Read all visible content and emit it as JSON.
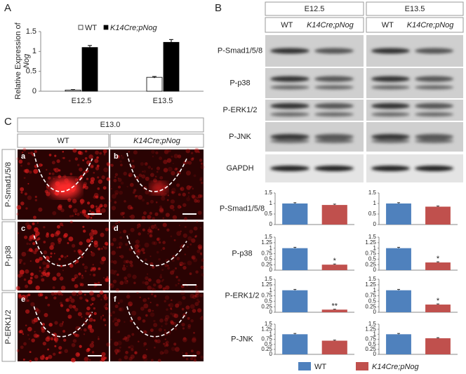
{
  "panel_labels": [
    "A",
    "B",
    "C"
  ],
  "blot": {
    "stages": [
      "E12.5",
      "E13.5"
    ],
    "genotypes": [
      [
        "WT",
        "K14Cre;pNog"
      ],
      [
        "WT",
        "K14Cre;pNog"
      ]
    ],
    "rows": [
      "P-Smad1/5/8",
      "P-p38",
      "P-ERK1/2",
      "P-JNK",
      "GAPDH"
    ]
  },
  "micrographs": {
    "stage": "E13.0",
    "genotypes": [
      "WT",
      "K14Cre;pNog"
    ],
    "rows": [
      "P-Smad1/5/8",
      "P-p38",
      "P-ERK1/2"
    ],
    "letters": [
      [
        "a",
        "b"
      ],
      [
        "c",
        "d"
      ],
      [
        "e",
        "f"
      ]
    ]
  },
  "bar_rows": [
    "P-Smad1/5/8",
    "P-p38",
    "P-ERK1/2",
    "P-JNK"
  ],
  "legend_b": [
    {
      "name": "WT",
      "color": "#4f81bd"
    },
    {
      "name": "K14Cre;pNog",
      "color": "#c0504d"
    }
  ],
  "chart_data": [
    {
      "type": "bar",
      "ylabel": [
        "Relative Expression of",
        "Nog"
      ],
      "categories": [
        "E12.5",
        "E13.5"
      ],
      "series": [
        {
          "name": "WT",
          "color": "#ffffff",
          "values": [
            0.03,
            0.35
          ],
          "errors": [
            0.01,
            0.02
          ]
        },
        {
          "name": "K14Cre;pNog",
          "color": "#000000",
          "values": [
            1.1,
            1.23
          ],
          "errors": [
            0.05,
            0.07
          ]
        }
      ],
      "ylim": [
        0,
        1.5
      ],
      "yticks": [
        0,
        0.5,
        1,
        1.5
      ]
    },
    {
      "type": "small-bar",
      "categories": [
        null,
        null
      ],
      "values": [
        1,
        0.93
      ],
      "errors": [
        0.04,
        0.04
      ],
      "significance": [
        null,
        null
      ],
      "ylim": [
        0,
        1.5
      ],
      "yticks": [
        0,
        0.5,
        1,
        1.5
      ]
    },
    {
      "type": "small-bar",
      "categories": [
        null,
        null
      ],
      "values": [
        1,
        0.85
      ],
      "errors": [
        0.04,
        0.03
      ],
      "significance": [
        null,
        null
      ],
      "ylim": [
        0,
        1.5
      ],
      "yticks": [
        0,
        0.5,
        1,
        1.5
      ]
    },
    {
      "type": "small-bar",
      "categories": [
        null,
        null
      ],
      "values": [
        1,
        0.25
      ],
      "errors": [
        0.04,
        0.03
      ],
      "significance": [
        null,
        "*"
      ],
      "ylim": [
        0,
        1.5
      ],
      "yticks": [
        0,
        0.25,
        0.5,
        0.75,
        1,
        1.25,
        1.5
      ]
    },
    {
      "type": "small-bar",
      "categories": [
        null,
        null
      ],
      "values": [
        1,
        0.35
      ],
      "errors": [
        0.04,
        0.03
      ],
      "significance": [
        null,
        "*"
      ],
      "ylim": [
        0,
        1.5
      ],
      "yticks": [
        0,
        0.25,
        0.5,
        0.75,
        1,
        1.25,
        1.5
      ]
    },
    {
      "type": "small-bar",
      "categories": [
        null,
        null
      ],
      "values": [
        1,
        0.12
      ],
      "errors": [
        0.04,
        0.02
      ],
      "significance": [
        null,
        "**"
      ],
      "ylim": [
        0,
        1.5
      ],
      "yticks": [
        0,
        0.25,
        0.5,
        0.75,
        1,
        1.25,
        1.5
      ]
    },
    {
      "type": "small-bar",
      "categories": [
        null,
        null
      ],
      "values": [
        1,
        0.35
      ],
      "errors": [
        0.04,
        0.03
      ],
      "significance": [
        null,
        "*"
      ],
      "ylim": [
        0,
        1.5
      ],
      "yticks": [
        0,
        0.25,
        0.5,
        0.75,
        1,
        1.25,
        1.5
      ]
    },
    {
      "type": "small-bar",
      "categories": [
        null,
        null
      ],
      "values": [
        1,
        0.68
      ],
      "errors": [
        0.04,
        0.03
      ],
      "significance": [
        null,
        null
      ],
      "ylim": [
        0,
        1.5
      ],
      "yticks": [
        0,
        0.25,
        0.5,
        0.75,
        1,
        1.25,
        1.5
      ]
    },
    {
      "type": "small-bar",
      "categories": [
        null,
        null
      ],
      "values": [
        1,
        0.8
      ],
      "errors": [
        0.04,
        0.03
      ],
      "significance": [
        null,
        null
      ],
      "ylim": [
        0,
        1.5
      ],
      "yticks": [
        0,
        0.25,
        0.5,
        0.75,
        1,
        1.25,
        1.5
      ]
    }
  ]
}
